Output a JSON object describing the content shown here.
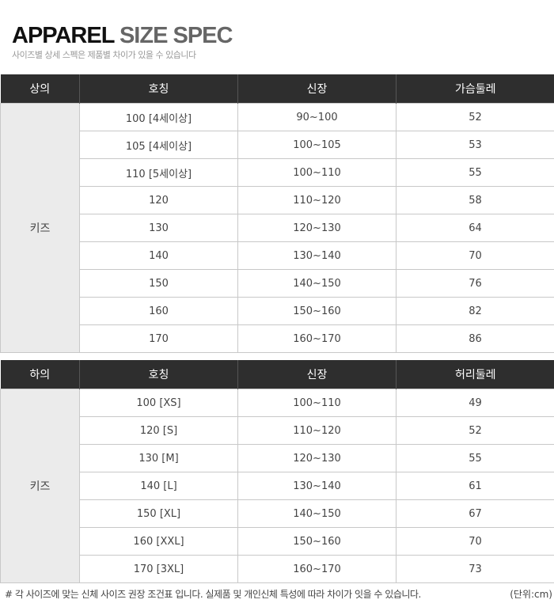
{
  "title": {
    "part1": "APPAREL",
    "part2": "SIZE SPEC",
    "subtitle": "사이즈별 상세 스펙은 제품별 차이가 있을 수 있습니다"
  },
  "top": {
    "headers": [
      "상의",
      "호칭",
      "신장",
      "가슴둘레"
    ],
    "category": "키즈",
    "rows": [
      [
        "100 [4세이상]",
        "90~100",
        "52"
      ],
      [
        "105 [4세이상]",
        "100~105",
        "53"
      ],
      [
        "110 [5세이상]",
        "100~110",
        "55"
      ],
      [
        "120",
        "110~120",
        "58"
      ],
      [
        "130",
        "120~130",
        "64"
      ],
      [
        "140",
        "130~140",
        "70"
      ],
      [
        "150",
        "140~150",
        "76"
      ],
      [
        "160",
        "150~160",
        "82"
      ],
      [
        "170",
        "160~170",
        "86"
      ]
    ]
  },
  "bottom": {
    "headers": [
      "하의",
      "호칭",
      "신장",
      "허리둘레"
    ],
    "category": "키즈",
    "rows": [
      [
        "100 [XS]",
        "100~110",
        "49"
      ],
      [
        "120 [S]",
        "110~120",
        "52"
      ],
      [
        "130 [M]",
        "120~130",
        "55"
      ],
      [
        "140 [L]",
        "130~140",
        "61"
      ],
      [
        "150 [XL]",
        "140~150",
        "67"
      ],
      [
        "160 [XXL]",
        "150~160",
        "70"
      ],
      [
        "170 [3XL]",
        "160~170",
        "73"
      ]
    ]
  },
  "footer": {
    "note": "# 각 사이즈에 맞는 신체 사이즈 권장 조건표 입니다. 실제품 및 개인신체 특성에 따라 차이가 잇을 수 있습니다.",
    "unit": "(단위:cm)"
  }
}
